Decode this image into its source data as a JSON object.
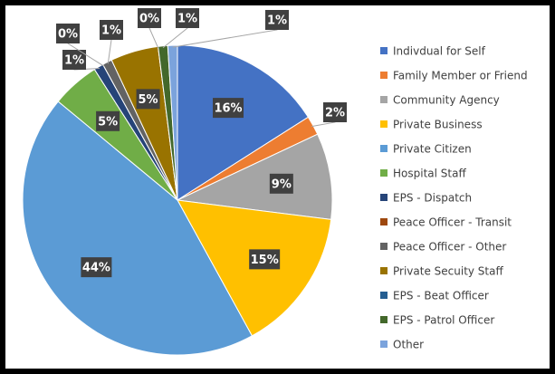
{
  "chart_data": {
    "type": "pie",
    "categories": [
      "Indivdual for Self",
      "Family Member or Friend",
      "Community Agency",
      "Private Business",
      "Private Citizen",
      "Hospital Staff",
      "EPS - Dispatch",
      "Peace Officer - Transit",
      "Peace Officer - Other",
      "Private Secuity Staff",
      "EPS - Beat Officer",
      "EPS - Patrol Officer",
      "Other"
    ],
    "values": [
      16,
      2,
      9,
      15,
      44,
      5,
      1,
      0,
      1,
      5,
      0,
      1,
      1
    ],
    "value_labels": [
      "16%",
      "2%",
      "9%",
      "15%",
      "44%",
      "5%",
      "1%",
      "0%",
      "1%",
      "5%",
      "0%",
      "1%",
      "1%"
    ],
    "colors": [
      "#4472c4",
      "#ed7d31",
      "#a5a5a5",
      "#ffc000",
      "#5b9bd5",
      "#70ad47",
      "#264478",
      "#9e480e",
      "#636363",
      "#997300",
      "#255e91",
      "#43682b",
      "#7ba3dc"
    ],
    "legend": "right"
  }
}
